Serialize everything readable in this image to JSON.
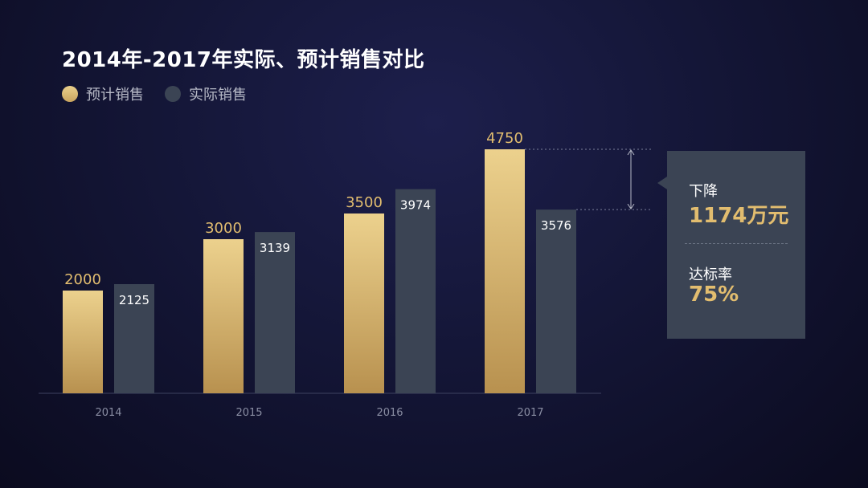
{
  "chart_data": {
    "type": "bar",
    "title": "2014年-2017年实际、预计销售对比",
    "categories": [
      "2014",
      "2015",
      "2016",
      "2017"
    ],
    "series": [
      {
        "name": "预计销售",
        "values": [
          2000,
          3000,
          3500,
          4750
        ],
        "color": "#d9b76c"
      },
      {
        "name": "实际销售",
        "values": [
          2125,
          3139,
          3974,
          3576
        ],
        "color": "#3b4454"
      }
    ],
    "legend_position": "top-left",
    "grid": false,
    "y_axis_visible": false,
    "ylim": [
      0,
      5000
    ]
  },
  "callout": {
    "decline_label": "下降",
    "decline_value": "1174万元",
    "rate_label": "达标率",
    "rate_value": "75%"
  },
  "colors": {
    "gold": "#d9b76c",
    "gold_label": "#e2bd6f",
    "gray_bar": "#3b4454",
    "background": "#141637"
  }
}
